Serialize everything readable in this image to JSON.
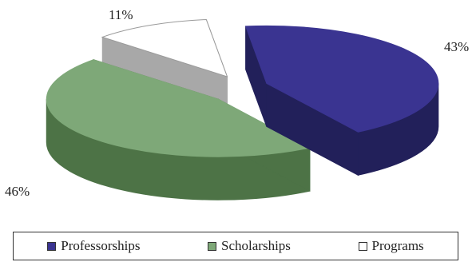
{
  "chart_data": {
    "type": "pie",
    "categories": [
      "Professorships",
      "Scholarships",
      "Programs"
    ],
    "values": [
      43,
      46,
      11
    ],
    "value_labels": [
      "43%",
      "46%",
      "11%"
    ],
    "exploded": true,
    "three_d": true,
    "legend_position": "bottom",
    "colors": {
      "Professorships": {
        "top": "#3a3491",
        "side": "#22205a"
      },
      "Scholarships": {
        "top": "#7ea878",
        "side": "#4d7346"
      },
      "Programs": {
        "top": "#ffffff",
        "side": "#a8a8a8"
      }
    }
  }
}
